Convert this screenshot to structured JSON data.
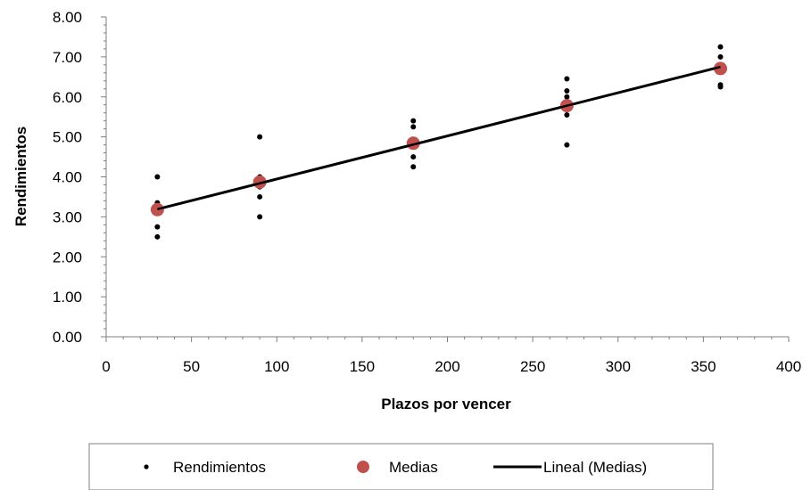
{
  "chart_data": {
    "type": "scatter",
    "title": "",
    "xlabel": "Plazos por vencer",
    "ylabel": "Rendimientos",
    "xlim": [
      0,
      400
    ],
    "ylim": [
      0,
      8
    ],
    "xticks": [
      "0",
      "50",
      "100",
      "150",
      "200",
      "250",
      "300",
      "350",
      "400"
    ],
    "yticks": [
      "0.00",
      "1.00",
      "2.00",
      "3.00",
      "4.00",
      "5.00",
      "6.00",
      "7.00",
      "8.00"
    ],
    "grid": false,
    "legend_position": "bottom",
    "series": [
      {
        "name": "Rendimientos",
        "marker": "small-dot",
        "color": "#000000",
        "points": [
          {
            "x": 30,
            "y": 4.0
          },
          {
            "x": 30,
            "y": 3.35
          },
          {
            "x": 30,
            "y": 3.3
          },
          {
            "x": 30,
            "y": 3.2
          },
          {
            "x": 30,
            "y": 2.75
          },
          {
            "x": 30,
            "y": 2.5
          },
          {
            "x": 90,
            "y": 5.0
          },
          {
            "x": 90,
            "y": 4.0
          },
          {
            "x": 90,
            "y": 3.95
          },
          {
            "x": 90,
            "y": 3.75
          },
          {
            "x": 90,
            "y": 3.5
          },
          {
            "x": 90,
            "y": 3.0
          },
          {
            "x": 180,
            "y": 5.4
          },
          {
            "x": 180,
            "y": 5.25
          },
          {
            "x": 180,
            "y": 4.9
          },
          {
            "x": 180,
            "y": 4.75
          },
          {
            "x": 180,
            "y": 4.5
          },
          {
            "x": 180,
            "y": 4.25
          },
          {
            "x": 270,
            "y": 6.45
          },
          {
            "x": 270,
            "y": 6.15
          },
          {
            "x": 270,
            "y": 6.0
          },
          {
            "x": 270,
            "y": 5.75
          },
          {
            "x": 270,
            "y": 5.55
          },
          {
            "x": 270,
            "y": 4.8
          },
          {
            "x": 360,
            "y": 7.25
          },
          {
            "x": 360,
            "y": 7.0
          },
          {
            "x": 360,
            "y": 6.75
          },
          {
            "x": 360,
            "y": 6.7
          },
          {
            "x": 360,
            "y": 6.3
          },
          {
            "x": 360,
            "y": 6.25
          }
        ]
      },
      {
        "name": "Medias",
        "marker": "large-dot",
        "color": "#c0504d",
        "points": [
          {
            "x": 30,
            "y": 3.18
          },
          {
            "x": 90,
            "y": 3.87
          },
          {
            "x": 180,
            "y": 4.84
          },
          {
            "x": 270,
            "y": 5.78
          },
          {
            "x": 360,
            "y": 6.71
          }
        ]
      },
      {
        "name": "Lineal (Medias)",
        "type": "line",
        "color": "#000000",
        "points": [
          {
            "x": 30,
            "y": 3.19
          },
          {
            "x": 360,
            "y": 6.75
          }
        ]
      }
    ]
  }
}
